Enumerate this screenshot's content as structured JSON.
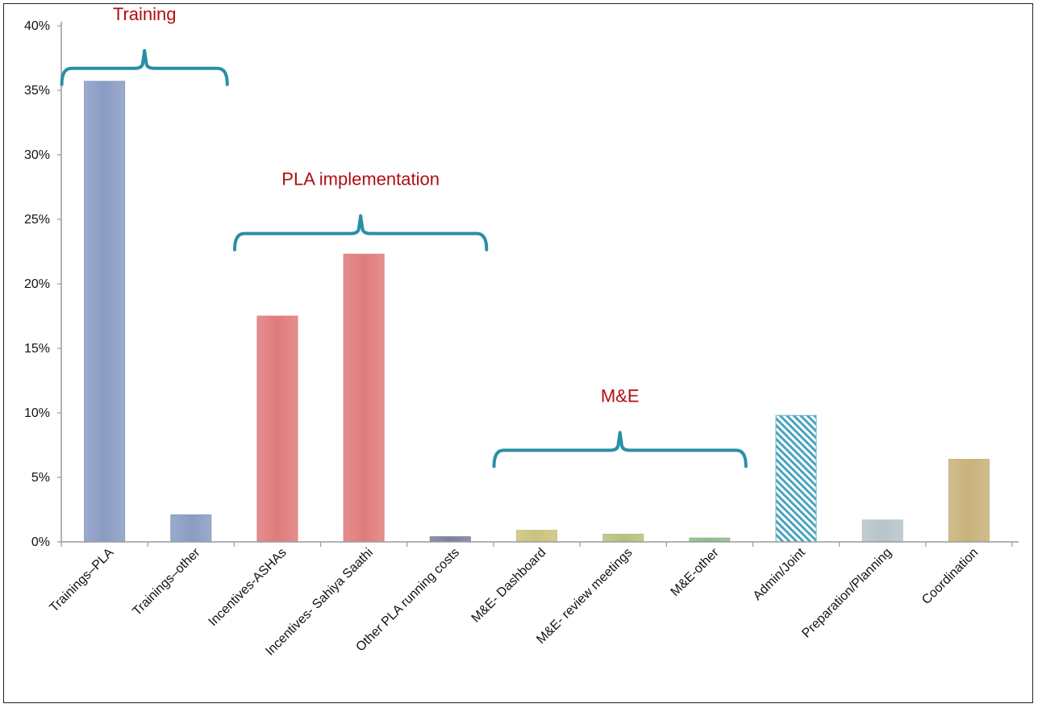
{
  "chart_data": {
    "type": "bar",
    "categories": [
      "Trainings–PLA",
      "Trainings–other",
      "Incentives-ASHAs",
      "Incentives- Sahiya Saathi",
      "Other PLA running costs",
      "M&E- Dashboard",
      "M&E- review meetings",
      "M&E-other",
      "Admin/Joint",
      "Preparation/Planning",
      "Coordination"
    ],
    "values": [
      35.7,
      2.1,
      17.5,
      22.3,
      0.4,
      0.9,
      0.6,
      0.3,
      9.8,
      1.7,
      6.4
    ],
    "colors": [
      "#8a9cc4",
      "#8a9cc4",
      "#e07b7b",
      "#e07b7b",
      "#7b7f9e",
      "#cbc27e",
      "#b8c07e",
      "#8fbc8f",
      "#6ab0c7",
      "#b7c4c9",
      "#c9b27a"
    ],
    "hatched": [
      false,
      false,
      false,
      false,
      false,
      false,
      false,
      false,
      true,
      false,
      false
    ],
    "yticks": [
      "0%",
      "5%",
      "10%",
      "15%",
      "20%",
      "25%",
      "30%",
      "35%",
      "40%"
    ],
    "ylim": [
      0,
      40
    ],
    "grid": false,
    "groups": [
      {
        "label": "Training",
        "from": 0,
        "to": 1,
        "at": 36.7
      },
      {
        "label": "PLA implementation",
        "from": 2,
        "to": 4,
        "at": 23.9
      },
      {
        "label": "M&E",
        "from": 5,
        "to": 7,
        "at": 7.1
      }
    ],
    "bracket_color": "#2a8fa6"
  }
}
